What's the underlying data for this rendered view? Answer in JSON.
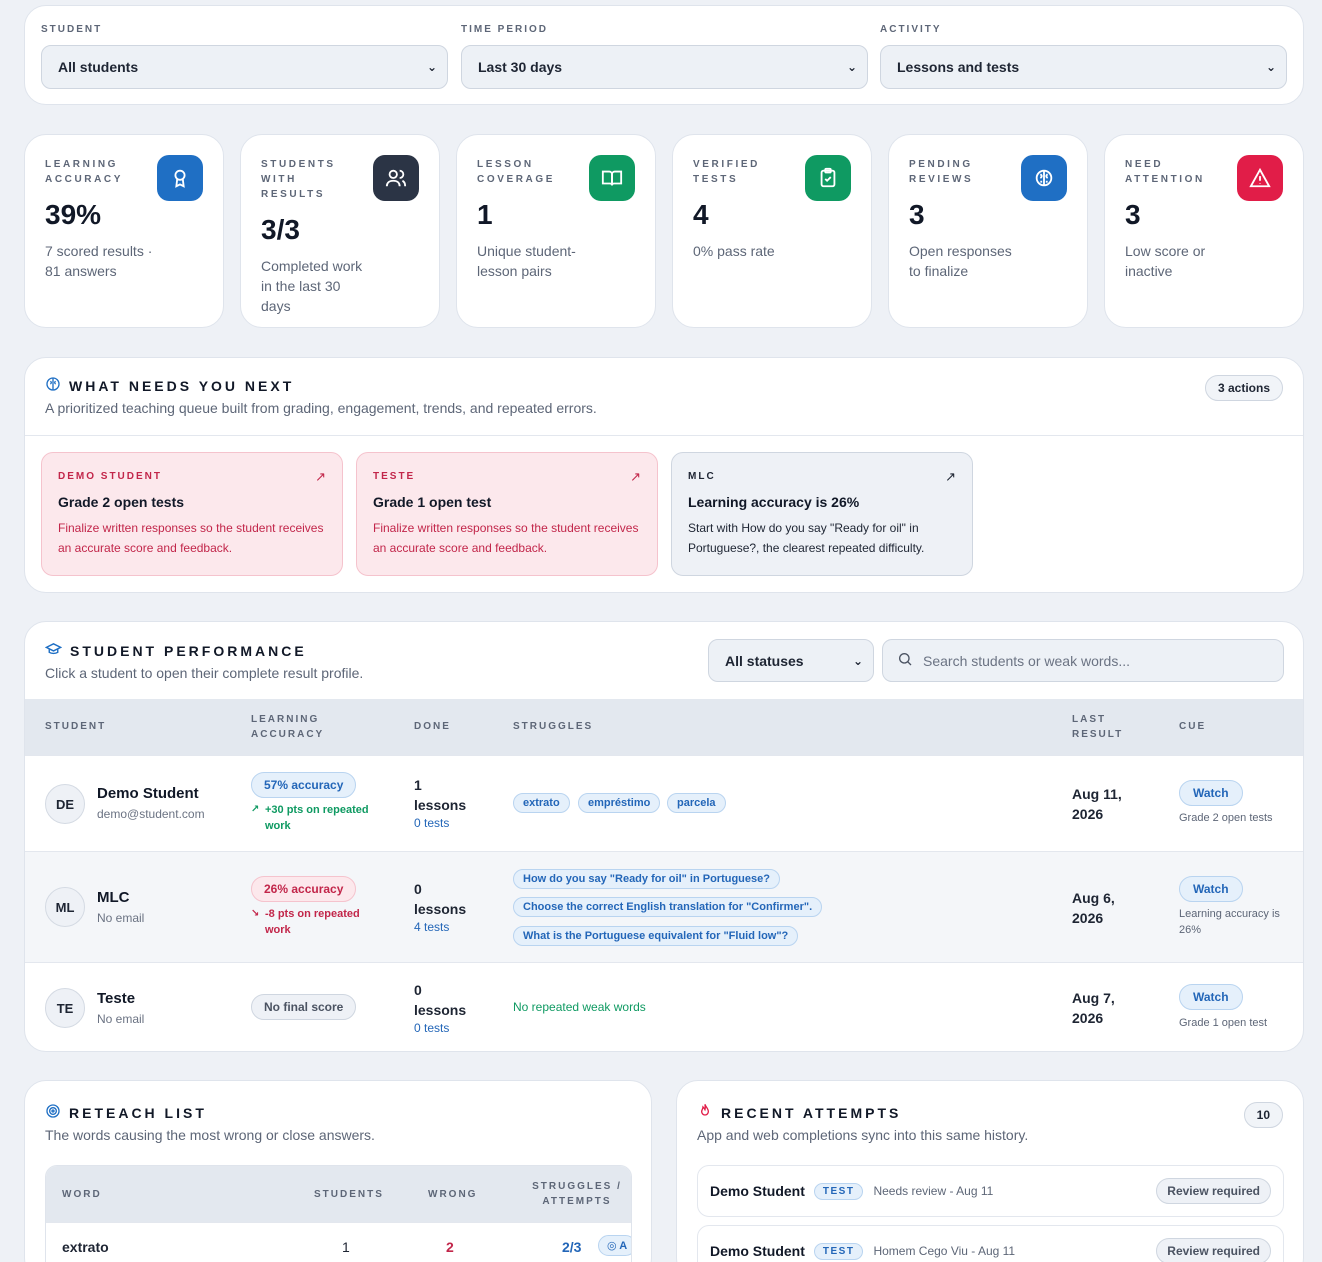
{
  "filters": [
    {
      "label": "STUDENT",
      "value": "All students"
    },
    {
      "label": "TIME PERIOD",
      "value": "Last 30 days"
    },
    {
      "label": "ACTIVITY",
      "value": "Lessons and tests"
    }
  ],
  "stats": [
    {
      "label": "LEARNING ACCURACY",
      "value": "39%",
      "desc": "7 scored results · 81 answers",
      "icon": "award-icon",
      "color": "#1f6fc4"
    },
    {
      "label": "STUDENTS WITH RESULTS",
      "value": "3/3",
      "desc": "Completed work in the last 30 days",
      "icon": "users-icon",
      "color": "#2b3445"
    },
    {
      "label": "LESSON COVERAGE",
      "value": "1",
      "desc": "Unique student-lesson pairs",
      "icon": "book-icon",
      "color": "#0f9a62"
    },
    {
      "label": "VERIFIED TESTS",
      "value": "4",
      "desc": "0% pass rate",
      "icon": "clipboard-check-icon",
      "color": "#0f9a62"
    },
    {
      "label": "PENDING REVIEWS",
      "value": "3",
      "desc": "Open responses to finalize",
      "icon": "brain-icon",
      "color": "#1f6fc4"
    },
    {
      "label": "NEED ATTENTION",
      "value": "3",
      "desc": "Low score or inactive",
      "icon": "alert-triangle-icon",
      "color": "#e11d48"
    }
  ],
  "next": {
    "title": "WHAT NEEDS YOU NEXT",
    "subtitle": "A prioritized teaching queue built from grading, engagement, trends, and repeated errors.",
    "badge": "3 actions",
    "actions": [
      {
        "label": "DEMO STUDENT",
        "title": "Grade 2 open tests",
        "desc": "Finalize written responses so the student receives an accurate score and feedback."
      },
      {
        "label": "TESTE",
        "title": "Grade 1 open test",
        "desc": "Finalize written responses so the student receives an accurate score and feedback."
      },
      {
        "label": "MLC",
        "title": "Learning accuracy is 26%",
        "desc": "Start with How do you say \"Ready for oil\" in Portuguese?, the clearest repeated difficulty."
      }
    ]
  },
  "performance": {
    "title": "STUDENT PERFORMANCE",
    "subtitle": "Click a student to open their complete result profile.",
    "status_select": "All statuses",
    "search_placeholder": "Search students or weak words...",
    "headers": {
      "student": "STUDENT",
      "accuracy": "LEARNING ACCURACY",
      "done": "DONE",
      "struggles": "STRUGGLES",
      "last": "LAST RESULT",
      "cue": "CUE"
    },
    "rows": [
      {
        "initials": "DE",
        "name": "Demo Student",
        "email": "demo@student.com",
        "accuracy": "57% accuracy",
        "trend_symbol": "↗",
        "trend": "+30 pts on repeated work",
        "lessons_count": "1",
        "lessons_label": "lessons",
        "tests": "0 tests",
        "struggles": [
          "extrato",
          "empréstimo",
          "parcela"
        ],
        "last_line1": "Aug 11,",
        "last_line2": "2026",
        "watch": "Watch",
        "cue": "Grade 2 open tests"
      },
      {
        "initials": "ML",
        "name": "MLC",
        "email": "No email",
        "accuracy": "26% accuracy",
        "trend_symbol": "↘",
        "trend": "-8 pts on repeated work",
        "lessons_count": "0",
        "lessons_label": "lessons",
        "tests": "4 tests",
        "struggles": [
          "How do you say \"Ready for oil\" in Portuguese?",
          "Choose the correct English translation for \"Confirmer\".",
          "What is the Portuguese equivalent for \"Fluid low\"?"
        ],
        "last_line1": "Aug 6,",
        "last_line2": "2026",
        "watch": "Watch",
        "cue": "Learning accuracy is 26%"
      },
      {
        "initials": "TE",
        "name": "Teste",
        "email": "No email",
        "accuracy": "No final score",
        "lessons_count": "0",
        "lessons_label": "lessons",
        "tests": "0 tests",
        "no_struggles": "No repeated weak words",
        "last_line1": "Aug 7,",
        "last_line2": "2026",
        "watch": "Watch",
        "cue": "Grade 1 open test"
      }
    ]
  },
  "reteach": {
    "title": "RETEACH LIST",
    "subtitle": "The words causing the most wrong or close answers.",
    "headers": {
      "word": "WORD",
      "students": "STUDENTS",
      "wrong": "WRONG",
      "struggles": "STRUGGLES / ATTEMPTS"
    },
    "rows": [
      {
        "word": "extrato",
        "students": "1",
        "wrong": "2",
        "ratio": "2/3",
        "badge": "A"
      }
    ]
  },
  "recent": {
    "title": "RECENT ATTEMPTS",
    "subtitle": "App and web completions sync into this same history.",
    "count": "10",
    "items": [
      {
        "name": "Demo Student",
        "type": "TEST",
        "detail": "Needs review - Aug 11",
        "status": "Review required"
      },
      {
        "name": "Demo Student",
        "type": "TEST",
        "detail": "Homem Cego Viu - Aug 11",
        "status": "Review required"
      }
    ]
  }
}
